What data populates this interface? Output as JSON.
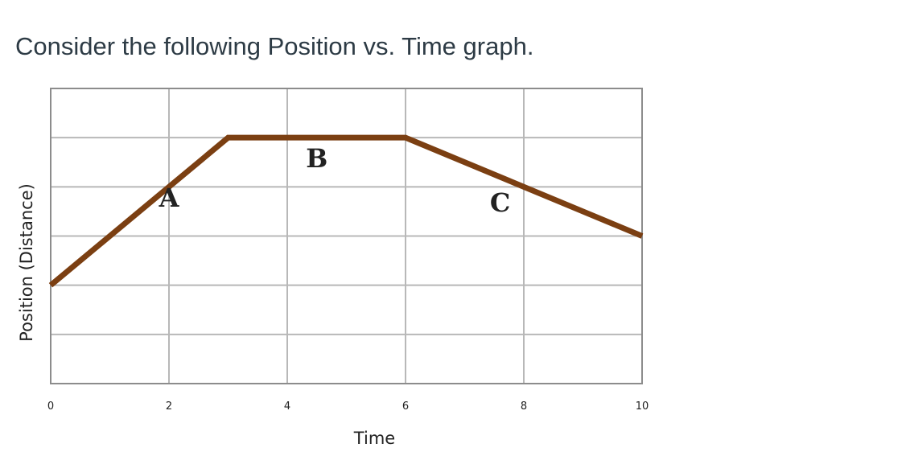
{
  "question": "Consider the following Position vs. Time graph.",
  "colors": {
    "line": "#7b3f12",
    "grid": "#b8b8b8",
    "frame": "#8c8c8c"
  },
  "chart_data": {
    "type": "line",
    "title": "",
    "xlabel": "Time",
    "ylabel": "Position (Distance)",
    "xlim": [
      0,
      10
    ],
    "ylim": [
      0,
      6
    ],
    "xticks": [
      "0",
      "2",
      "4",
      "6",
      "8",
      "10"
    ],
    "grid": true,
    "series": [
      {
        "x": [
          0,
          3,
          6,
          10
        ],
        "y": [
          2,
          5,
          5,
          3
        ]
      }
    ],
    "annotations": [
      {
        "text": "A",
        "x": 2,
        "y": 3.6
      },
      {
        "text": "B",
        "x": 4.5,
        "y": 4.4
      },
      {
        "text": "C",
        "x": 7.6,
        "y": 3.5
      }
    ]
  }
}
